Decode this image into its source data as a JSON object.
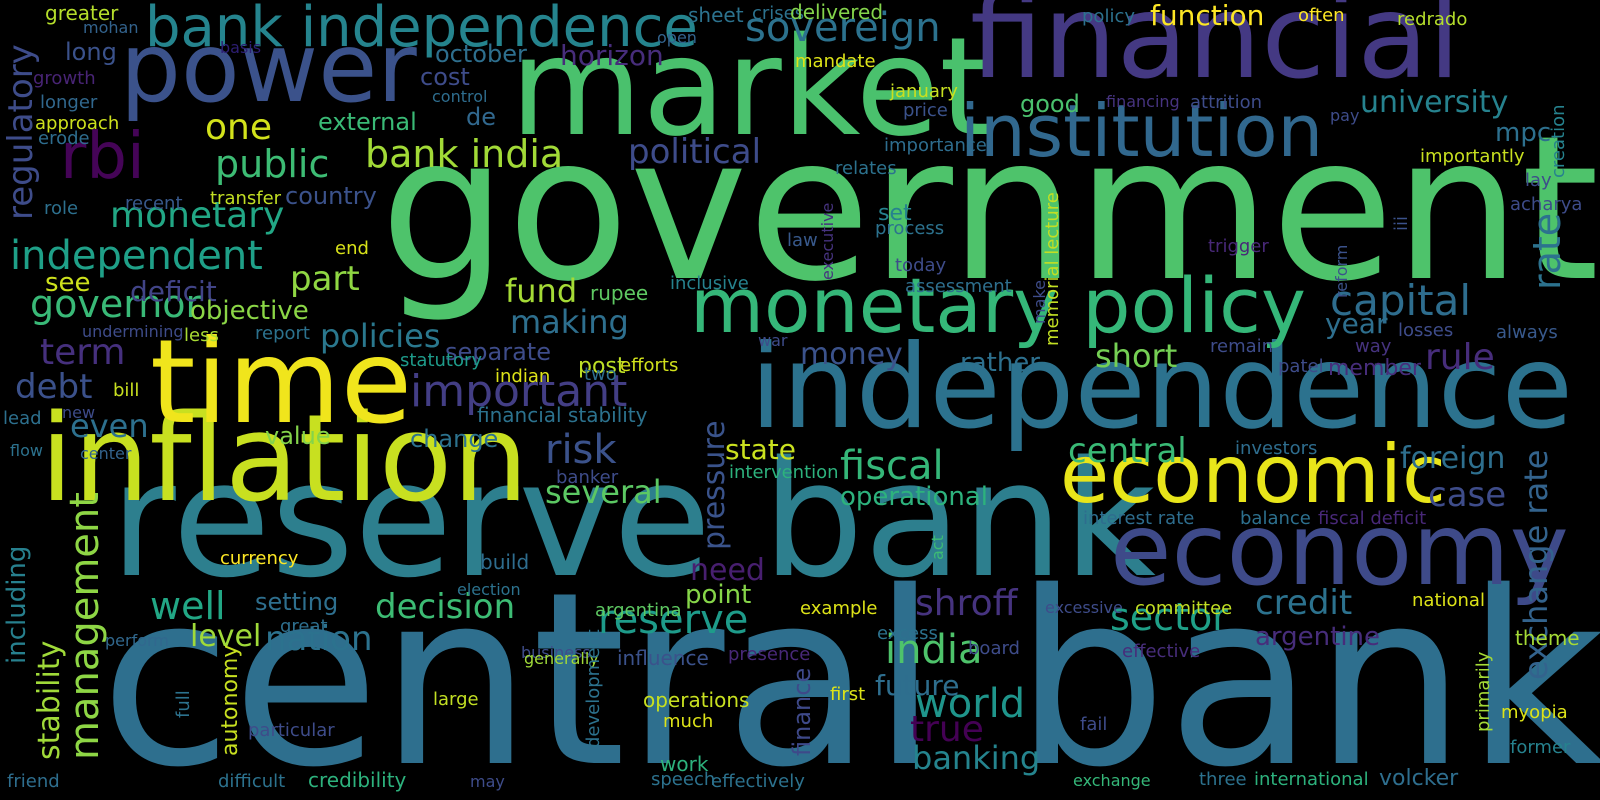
{
  "words": [
    {
      "text": "government",
      "color": "#4ec36b"
    },
    {
      "text": "central bank",
      "color": "#2e6f8e"
    },
    {
      "text": "reserve bank",
      "color": "#2d7f8e"
    },
    {
      "text": "inflation",
      "color": "#c8e020"
    },
    {
      "text": "market",
      "color": "#4ac16d"
    },
    {
      "text": "financial",
      "color": "#443983"
    },
    {
      "text": "time",
      "color": "#f0e51c"
    },
    {
      "text": "power",
      "color": "#3b528b"
    },
    {
      "text": "independence",
      "color": "#2c728e"
    },
    {
      "text": "economy",
      "color": "#3e4a89"
    },
    {
      "text": "economic",
      "color": "#e8e51a"
    },
    {
      "text": "institution",
      "color": "#31688e"
    },
    {
      "text": "monetary policy",
      "color": "#35b779"
    },
    {
      "text": "bank independence",
      "color": "#25848e"
    },
    {
      "text": "rbi",
      "color": "#450457"
    },
    {
      "text": "sovereign",
      "color": "#2c728e"
    },
    {
      "text": "regulatory",
      "color": "#3e4c8a"
    },
    {
      "text": "public",
      "color": "#3dbc74"
    },
    {
      "text": "one",
      "color": "#d2e21b"
    },
    {
      "text": "bank india",
      "color": "#a2da37"
    },
    {
      "text": "political",
      "color": "#3e4c8a"
    },
    {
      "text": "monetary",
      "color": "#22a785"
    },
    {
      "text": "independent",
      "color": "#1fa088"
    },
    {
      "text": "governor",
      "color": "#39b977"
    },
    {
      "text": "term",
      "color": "#46307e"
    },
    {
      "text": "debt",
      "color": "#3b518b"
    },
    {
      "text": "part",
      "color": "#90d743"
    },
    {
      "text": "policies",
      "color": "#2a788e"
    },
    {
      "text": "important",
      "color": "#433e85"
    },
    {
      "text": "making",
      "color": "#2e6f8e"
    },
    {
      "text": "fund",
      "color": "#a5db36"
    },
    {
      "text": "capital",
      "color": "#2e6d8e"
    },
    {
      "text": "university",
      "color": "#26828e"
    },
    {
      "text": "mpc",
      "color": "#2d708e"
    },
    {
      "text": "rate",
      "color": "#2c728e"
    },
    {
      "text": "exchange rate",
      "color": "#33638d"
    },
    {
      "text": "risk",
      "color": "#3b528b"
    },
    {
      "text": "fiscal",
      "color": "#35b779"
    },
    {
      "text": "central",
      "color": "#3aba76"
    },
    {
      "text": "pressure",
      "color": "#3a538b"
    },
    {
      "text": "several",
      "color": "#5cc863"
    },
    {
      "text": "state",
      "color": "#cae11f"
    },
    {
      "text": "short",
      "color": "#75d054"
    },
    {
      "text": "rule",
      "color": "#472d7b"
    },
    {
      "text": "year",
      "color": "#2e6f8e"
    },
    {
      "text": "foreign",
      "color": "#2e6f8e"
    },
    {
      "text": "case",
      "color": "#3e4c8a"
    },
    {
      "text": "well",
      "color": "#22a785"
    },
    {
      "text": "management",
      "color": "#8ed645"
    },
    {
      "text": "stability",
      "color": "#a0da39"
    },
    {
      "text": "including",
      "color": "#27808e"
    },
    {
      "text": "decision",
      "color": "#3dbc74"
    },
    {
      "text": "reserve",
      "color": "#1e9b8a"
    },
    {
      "text": "india",
      "color": "#4ec36b"
    },
    {
      "text": "sector",
      "color": "#1fa088"
    },
    {
      "text": "credit",
      "color": "#2c728e"
    },
    {
      "text": "shroff",
      "color": "#46337f"
    },
    {
      "text": "world",
      "color": "#1f958b"
    },
    {
      "text": "true",
      "color": "#440154"
    },
    {
      "text": "banking",
      "color": "#25848e"
    },
    {
      "text": "nation",
      "color": "#2c728e"
    },
    {
      "text": "level",
      "color": "#a0da39"
    },
    {
      "text": "argentine",
      "color": "#472d7b"
    },
    {
      "text": "finance",
      "color": "#3e4989"
    },
    {
      "text": "future",
      "color": "#2e6e8e"
    },
    {
      "text": "money",
      "color": "#3b528b"
    },
    {
      "text": "rather",
      "color": "#2d708e"
    },
    {
      "text": "need",
      "color": "#481f70"
    },
    {
      "text": "point",
      "color": "#86d549"
    },
    {
      "text": "operational",
      "color": "#2db27d"
    },
    {
      "text": "even",
      "color": "#2d708e"
    },
    {
      "text": "deficit",
      "color": "#414487"
    },
    {
      "text": "objective",
      "color": "#8bd646"
    },
    {
      "text": "see",
      "color": "#cde11d"
    },
    {
      "text": "country",
      "color": "#3b528b"
    },
    {
      "text": "external",
      "color": "#3aba76"
    },
    {
      "text": "cost",
      "color": "#3e4c8a"
    },
    {
      "text": "october",
      "color": "#2e6f8e"
    },
    {
      "text": "horizon",
      "color": "#472d7b"
    },
    {
      "text": "long",
      "color": "#3b528b"
    },
    {
      "text": "greater",
      "color": "#b5de2b"
    },
    {
      "text": "separate",
      "color": "#3e4c8a"
    },
    {
      "text": "post",
      "color": "#bddf26"
    },
    {
      "text": "value",
      "color": "#84d44b"
    },
    {
      "text": "change",
      "color": "#2c728e"
    },
    {
      "text": "financial stability",
      "color": "#2c728e"
    },
    {
      "text": "set",
      "color": "#26828e"
    },
    {
      "text": "good",
      "color": "#4ac16d"
    },
    {
      "text": "function",
      "color": "#fde725"
    },
    {
      "text": "mohan",
      "color": "#33638d"
    },
    {
      "text": "basis",
      "color": "#2d1e73"
    },
    {
      "text": "growth",
      "color": "#482475"
    },
    {
      "text": "longer",
      "color": "#31688e"
    },
    {
      "text": "approach",
      "color": "#cde11d"
    },
    {
      "text": "erode",
      "color": "#2e6d8e"
    },
    {
      "text": "role",
      "color": "#2d708e"
    },
    {
      "text": "recent",
      "color": "#38598c"
    },
    {
      "text": "transfer",
      "color": "#c2df23"
    },
    {
      "text": "end",
      "color": "#d8e219"
    },
    {
      "text": "undermining",
      "color": "#3e4c8a"
    },
    {
      "text": "less",
      "color": "#a8db34"
    },
    {
      "text": "report",
      "color": "#2c728e"
    },
    {
      "text": "statutory",
      "color": "#1e9b8a"
    },
    {
      "text": "indian",
      "color": "#dde318"
    },
    {
      "text": "two",
      "color": "#2e6e8e"
    },
    {
      "text": "efforts",
      "color": "#d2e21b"
    },
    {
      "text": "rupee",
      "color": "#5ec962"
    },
    {
      "text": "inclusive",
      "color": "#26828e"
    },
    {
      "text": "war",
      "color": "#3e4c8a"
    },
    {
      "text": "de",
      "color": "#31688e"
    },
    {
      "text": "sheet",
      "color": "#2c728e"
    },
    {
      "text": "open",
      "color": "#33638d"
    },
    {
      "text": "crises",
      "color": "#2c728e"
    },
    {
      "text": "delivered",
      "color": "#84d44b"
    },
    {
      "text": "mandate",
      "color": "#dde318"
    },
    {
      "text": "control",
      "color": "#2e6d8e"
    },
    {
      "text": "january",
      "color": "#c8e020"
    },
    {
      "text": "price",
      "color": "#3b528b"
    },
    {
      "text": "importance",
      "color": "#2e6d8e"
    },
    {
      "text": "relates",
      "color": "#2c728e"
    },
    {
      "text": "executive",
      "color": "#46337f"
    },
    {
      "text": "process",
      "color": "#2c728e"
    },
    {
      "text": "law",
      "color": "#38598c"
    },
    {
      "text": "today",
      "color": "#3e4c8a"
    },
    {
      "text": "assessment",
      "color": "#2e6f8e"
    },
    {
      "text": "make",
      "color": "#3e4c8a"
    },
    {
      "text": "memorial lecture",
      "color": "#c2df23"
    },
    {
      "text": "policy",
      "color": "#2c728e"
    },
    {
      "text": "often",
      "color": "#fde725"
    },
    {
      "text": "redrado",
      "color": "#b5de2b"
    },
    {
      "text": "financing",
      "color": "#46337f"
    },
    {
      "text": "attrition",
      "color": "#3e4c8a"
    },
    {
      "text": "pay",
      "color": "#3e4c8a"
    },
    {
      "text": "importantly",
      "color": "#c8e020"
    },
    {
      "text": "creation",
      "color": "#26828e"
    },
    {
      "text": "lay",
      "color": "#3e4c8a"
    },
    {
      "text": "acharya",
      "color": "#3e4c8a"
    },
    {
      "text": "iii",
      "color": "#3b528b"
    },
    {
      "text": "trigger",
      "color": "#482878"
    },
    {
      "text": "reform",
      "color": "#3b528b"
    },
    {
      "text": "remain",
      "color": "#3e4c8a"
    },
    {
      "text": "losses",
      "color": "#3e4c8a"
    },
    {
      "text": "always",
      "color": "#38598c"
    },
    {
      "text": "way",
      "color": "#46337f"
    },
    {
      "text": "patel",
      "color": "#3e4c8a"
    },
    {
      "text": "member",
      "color": "#472d7b"
    },
    {
      "text": "investors",
      "color": "#2e6d8e"
    },
    {
      "text": "interest rate",
      "color": "#2e6d8e"
    },
    {
      "text": "balance",
      "color": "#2d708e"
    },
    {
      "text": "fiscal deficit",
      "color": "#482878"
    },
    {
      "text": "intervention",
      "color": "#2db27d"
    },
    {
      "text": "banker",
      "color": "#3e4c8a"
    },
    {
      "text": "currency",
      "color": "#fde725"
    },
    {
      "text": "build",
      "color": "#2e6d8e"
    },
    {
      "text": "election",
      "color": "#2c728e"
    },
    {
      "text": "act",
      "color": "#3dbc74"
    },
    {
      "text": "argentina",
      "color": "#5ec962"
    },
    {
      "text": "example",
      "color": "#dde318"
    },
    {
      "text": "excessive",
      "color": "#3e4c8a"
    },
    {
      "text": "committee",
      "color": "#c2df23"
    },
    {
      "text": "national",
      "color": "#dde318"
    },
    {
      "text": "setting",
      "color": "#2e6f8e"
    },
    {
      "text": "great",
      "color": "#2e6f8e"
    },
    {
      "text": "perform",
      "color": "#31688e"
    },
    {
      "text": "business",
      "color": "#3e4c8a"
    },
    {
      "text": "generally",
      "color": "#a0da39"
    },
    {
      "text": "influence",
      "color": "#3b528b"
    },
    {
      "text": "presence",
      "color": "#482878"
    },
    {
      "text": "excess",
      "color": "#2c728e"
    },
    {
      "text": "board",
      "color": "#3e4c8a"
    },
    {
      "text": "effective",
      "color": "#472d7b"
    },
    {
      "text": "theme",
      "color": "#a5db36"
    },
    {
      "text": "primarily",
      "color": "#a5db36"
    },
    {
      "text": "lead",
      "color": "#2d708e"
    },
    {
      "text": "new",
      "color": "#3e4c8a"
    },
    {
      "text": "flow",
      "color": "#2c728e"
    },
    {
      "text": "center",
      "color": "#33638d"
    },
    {
      "text": "bill",
      "color": "#c8e020"
    },
    {
      "text": "autonomy",
      "color": "#c8e020"
    },
    {
      "text": "full",
      "color": "#2c728e"
    },
    {
      "text": "large",
      "color": "#c2df23"
    },
    {
      "text": "particular",
      "color": "#3e4c8a"
    },
    {
      "text": "operations",
      "color": "#c8e020"
    },
    {
      "text": "development",
      "color": "#2c728e"
    },
    {
      "text": "much",
      "color": "#dde318"
    },
    {
      "text": "first",
      "color": "#dde318"
    },
    {
      "text": "fail",
      "color": "#3e4c8a"
    },
    {
      "text": "myopia",
      "color": "#dde318"
    },
    {
      "text": "former",
      "color": "#26828e"
    },
    {
      "text": "friend",
      "color": "#2e6e8e"
    },
    {
      "text": "difficult",
      "color": "#2c728e"
    },
    {
      "text": "credibility",
      "color": "#2db27d"
    },
    {
      "text": "may",
      "color": "#3e4c8a"
    },
    {
      "text": "speech",
      "color": "#2c728e"
    },
    {
      "text": "work",
      "color": "#2db27d"
    },
    {
      "text": "effectively",
      "color": "#2c728e"
    },
    {
      "text": "exchange",
      "color": "#35b779"
    },
    {
      "text": "three",
      "color": "#2c728e"
    },
    {
      "text": "international",
      "color": "#2db27d"
    },
    {
      "text": "volcker",
      "color": "#2e6e8e"
    }
  ]
}
